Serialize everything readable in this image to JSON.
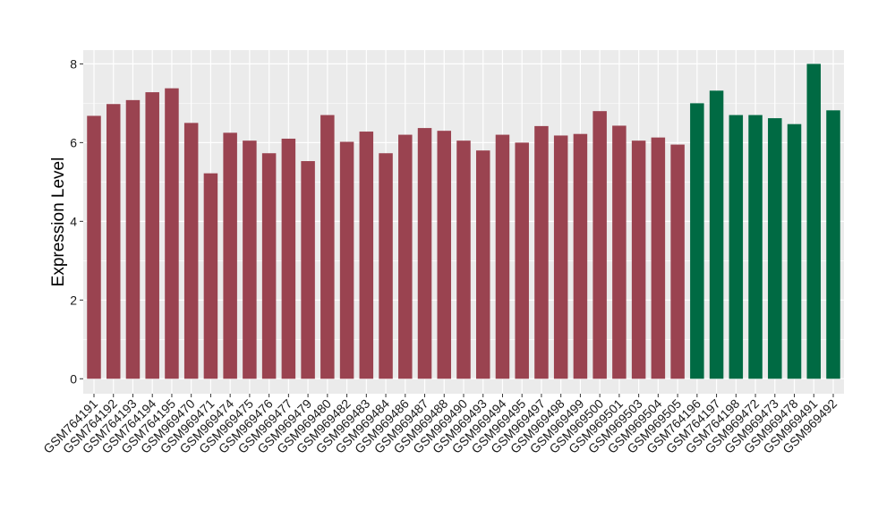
{
  "chart_data": {
    "type": "bar",
    "title": "",
    "xlabel": "",
    "ylabel": "Expression Level",
    "ylim": [
      0,
      8.2
    ],
    "yticks": [
      0,
      2,
      4,
      6,
      8
    ],
    "grid": true,
    "legend": "none",
    "colors": {
      "group1": "#9a4350",
      "group2": "#006a43",
      "panel": "#ebebeb",
      "grid": "#ffffff"
    },
    "categories": [
      "GSM764191",
      "GSM764192",
      "GSM764193",
      "GSM764194",
      "GSM764195",
      "GSM969470",
      "GSM969471",
      "GSM969474",
      "GSM969475",
      "GSM969476",
      "GSM969477",
      "GSM969479",
      "GSM969480",
      "GSM969482",
      "GSM969483",
      "GSM969484",
      "GSM969486",
      "GSM969487",
      "GSM969488",
      "GSM969490",
      "GSM969493",
      "GSM969494",
      "GSM969495",
      "GSM969497",
      "GSM969498",
      "GSM969499",
      "GSM969500",
      "GSM969501",
      "GSM969503",
      "GSM969504",
      "GSM969505",
      "GSM764196",
      "GSM764197",
      "GSM764198",
      "GSM969472",
      "GSM969473",
      "GSM969478",
      "GSM969491",
      "GSM969492"
    ],
    "values": [
      6.68,
      6.98,
      7.08,
      7.28,
      7.38,
      6.5,
      5.22,
      6.25,
      6.05,
      5.73,
      6.1,
      5.53,
      6.7,
      6.02,
      6.28,
      5.73,
      6.2,
      6.37,
      6.3,
      6.05,
      5.8,
      6.2,
      6.0,
      6.42,
      6.18,
      6.22,
      6.8,
      6.43,
      6.05,
      6.13,
      5.95,
      7.0,
      7.32,
      6.7,
      6.7,
      6.62,
      6.47,
      8.0,
      6.82
    ],
    "groups": [
      1,
      1,
      1,
      1,
      1,
      1,
      1,
      1,
      1,
      1,
      1,
      1,
      1,
      1,
      1,
      1,
      1,
      1,
      1,
      1,
      1,
      1,
      1,
      1,
      1,
      1,
      1,
      1,
      1,
      1,
      1,
      2,
      2,
      2,
      2,
      2,
      2,
      2,
      2
    ]
  }
}
